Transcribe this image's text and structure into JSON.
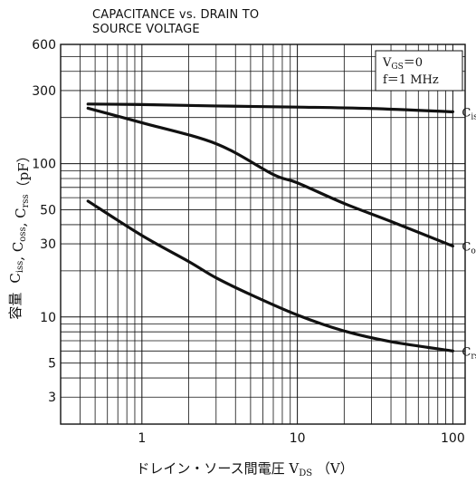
{
  "chart_data": {
    "type": "line",
    "title": "CAPACITANCE vs. DRAIN TO\nSOURCE VOLTAGE",
    "title_lines": [
      "CAPACITANCE vs. DRAIN TO",
      "SOURCE VOLTAGE"
    ],
    "xlabel": "ドレイン・ソース間電圧   VDS（V）",
    "xlabel_parts": {
      "text": "ドレイン・ソース間電圧",
      "var": "V",
      "sub": "DS",
      "unit": "（V）"
    },
    "ylabel": "容量   Ciss,  Coss,  Crss（pF）",
    "ylabel_parts": [
      {
        "text": "容量",
        "sub": ""
      },
      {
        "text": "C",
        "sub": "iss"
      },
      {
        "text": ",  C",
        "sub": "oss"
      },
      {
        "text": ",  C",
        "sub": "rss"
      },
      {
        "text": "（pF）",
        "sub": ""
      }
    ],
    "xscale": "log",
    "yscale": "log",
    "xlim": [
      0.3,
      120
    ],
    "ylim": [
      2,
      600
    ],
    "grid": true,
    "x_ticks": [
      {
        "value": 1,
        "label": "1"
      },
      {
        "value": 10,
        "label": "10"
      },
      {
        "value": 100,
        "label": "100"
      }
    ],
    "y_ticks": [
      {
        "value": 600,
        "label": "600"
      },
      {
        "value": 300,
        "label": "300"
      },
      {
        "value": 100,
        "label": "100"
      },
      {
        "value": 50,
        "label": "50"
      },
      {
        "value": 30,
        "label": "30"
      },
      {
        "value": 10,
        "label": "10"
      },
      {
        "value": 5,
        "label": "5"
      },
      {
        "value": 3,
        "label": "3"
      }
    ],
    "conditions": [
      {
        "var": "V",
        "sub": "GS",
        "rest": "＝0"
      },
      {
        "var": "f＝1 MHz",
        "sub": "",
        "rest": ""
      }
    ],
    "legend_position": "top-right",
    "series": [
      {
        "name": "Ciss",
        "label": {
          "var": "C",
          "sub": "iss"
        },
        "x": [
          0.45,
          1,
          3,
          10,
          30,
          100
        ],
        "y": [
          245,
          243,
          238,
          234,
          229,
          218
        ]
      },
      {
        "name": "Coss",
        "label": {
          "var": "C",
          "sub": "oss"
        },
        "x": [
          0.45,
          1,
          3,
          7,
          10,
          20,
          40,
          100
        ],
        "y": [
          230,
          185,
          135,
          85,
          75,
          55,
          42,
          29
        ]
      },
      {
        "name": "Crss",
        "label": {
          "var": "C",
          "sub": "rss"
        },
        "x": [
          0.45,
          1,
          2,
          3,
          5,
          10,
          20,
          40,
          100
        ],
        "y": [
          57,
          34,
          23,
          18,
          14,
          10.3,
          8.1,
          6.9,
          6
        ]
      }
    ]
  }
}
